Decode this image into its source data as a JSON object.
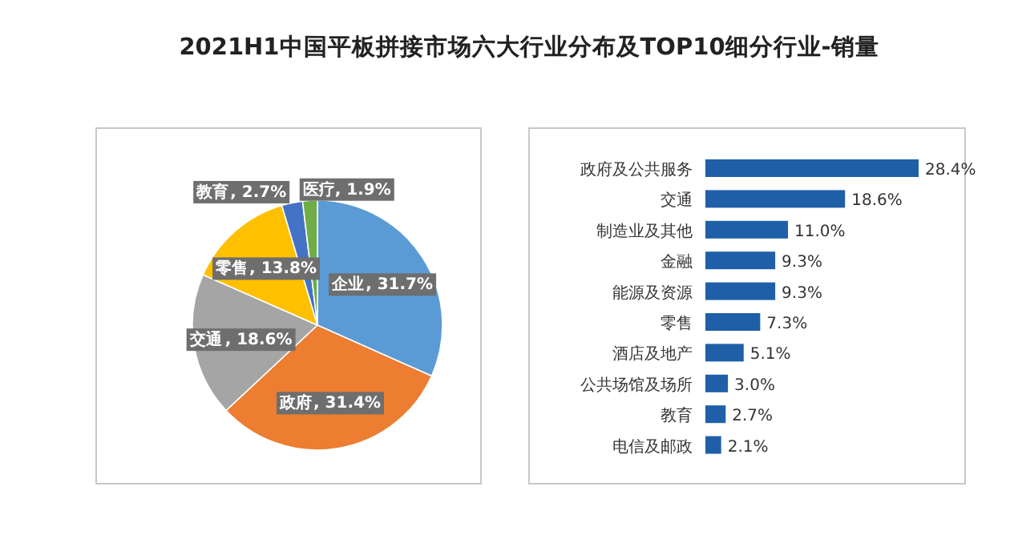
{
  "chart_data": [
    {
      "type": "pie",
      "title": "2021H1中国平板拼接市场六大行业分布及TOP10细分行业-销量",
      "categories": [
        "企业",
        "政府",
        "交通",
        "零售",
        "教育",
        "医疗"
      ],
      "values": [
        31.7,
        31.4,
        18.6,
        13.8,
        2.7,
        1.9
      ],
      "colors": [
        "#5b9bd5",
        "#ed7d31",
        "#a5a5a5",
        "#ffc000",
        "#4472c4",
        "#70ad47"
      ],
      "value_labels": [
        ", 31.7%",
        ", 31.4%",
        ", 18.6%",
        ", 13.8%",
        ", 2.7%",
        ", 1.9%"
      ]
    },
    {
      "type": "bar",
      "orientation": "horizontal",
      "categories": [
        "政府及公共服务",
        "交通",
        "制造业及其他",
        "金融",
        "能源及资源",
        "零售",
        "酒店及地产",
        "公共场馆及场所",
        "教育",
        "电信及邮政"
      ],
      "values": [
        28.4,
        18.6,
        11.0,
        9.3,
        9.3,
        7.3,
        5.1,
        3.0,
        2.7,
        2.1
      ],
      "color": "#1f5fa8",
      "value_labels": [
        "28.4%",
        "18.6%",
        "11.0%",
        "9.3%",
        "9.3%",
        "7.3%",
        "5.1%",
        "3.0%",
        "2.7%",
        "2.1%"
      ]
    }
  ]
}
